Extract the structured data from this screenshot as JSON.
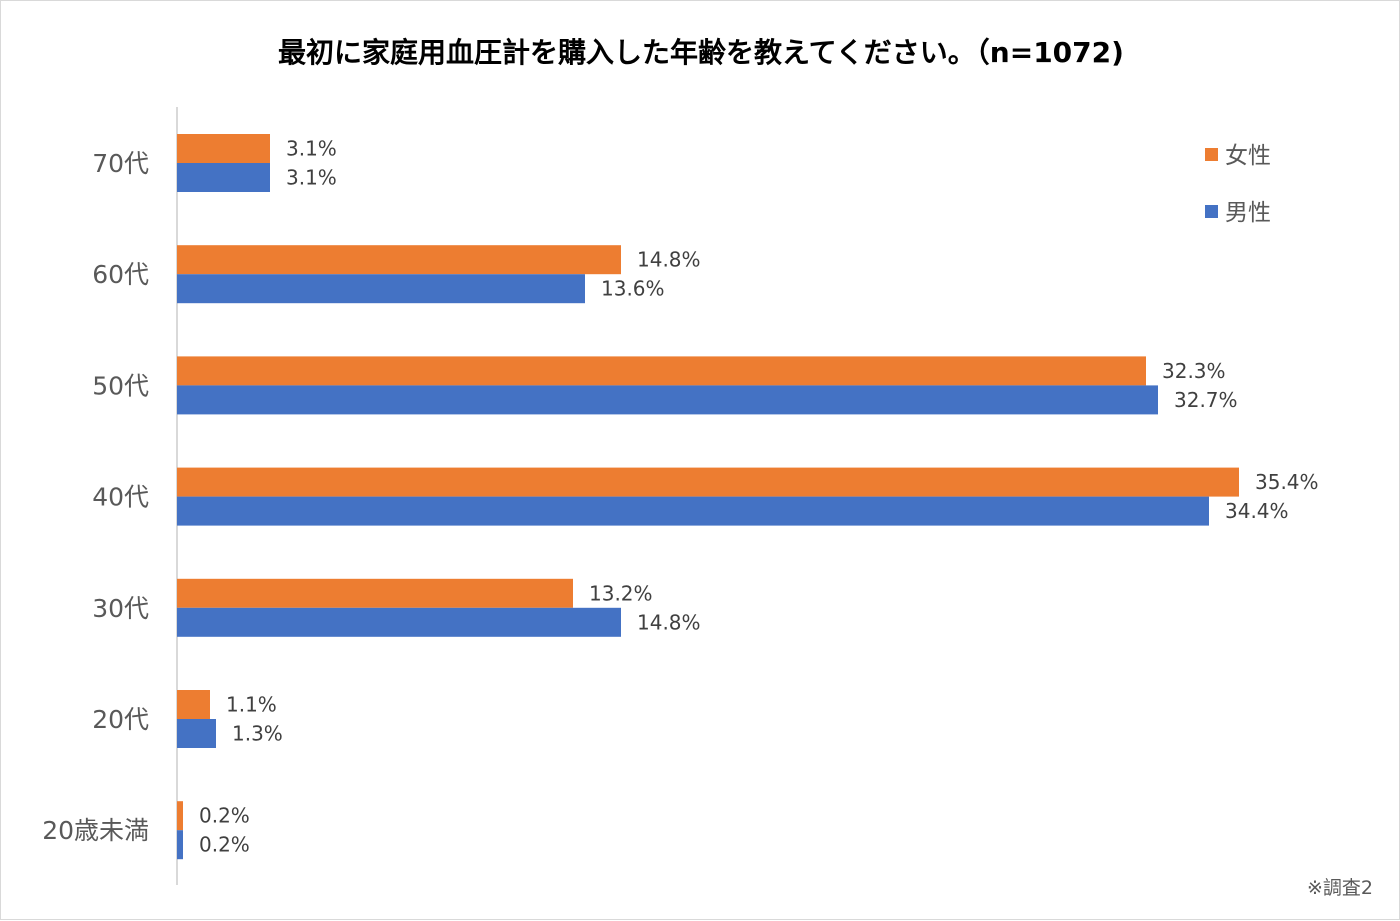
{
  "chart_data": {
    "type": "bar",
    "orientation": "horizontal",
    "title": "最初に家庭用血圧計を購入した年齢を教えてください。（n=1072)",
    "categories": [
      "70代",
      "60代",
      "50代",
      "40代",
      "30代",
      "20代",
      "20歳未満"
    ],
    "series": [
      {
        "name": "女性",
        "color": "#ED7D31",
        "values": [
          3.1,
          14.8,
          32.3,
          35.4,
          13.2,
          1.1,
          0.2
        ],
        "labels": [
          "3.1%",
          "14.8%",
          "32.3%",
          "35.4%",
          "13.2%",
          "1.1%",
          "0.2%"
        ]
      },
      {
        "name": "男性",
        "color": "#4472C4",
        "values": [
          3.1,
          13.6,
          32.7,
          34.4,
          14.8,
          1.3,
          0.2
        ],
        "labels": [
          "3.1%",
          "13.6%",
          "32.7%",
          "34.4%",
          "14.8%",
          "1.3%",
          "0.2%"
        ]
      }
    ],
    "xlim": [
      0,
      40
    ],
    "xlabel": "",
    "ylabel": "",
    "grid": false,
    "legend_position": "top-right"
  },
  "footnote": "※調査2"
}
